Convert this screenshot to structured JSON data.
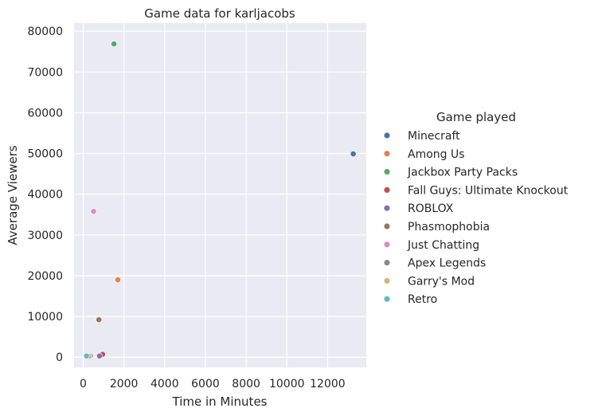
{
  "chart_data": {
    "type": "scatter",
    "title": "Game data for karljacobs",
    "xlabel": "Time in Minutes",
    "ylabel": "Average Viewers",
    "xlim": [
      -450,
      13900
    ],
    "ylim": [
      -2500,
      82000
    ],
    "xticks": [
      0,
      2000,
      4000,
      6000,
      8000,
      10000,
      12000
    ],
    "yticks": [
      0,
      10000,
      20000,
      30000,
      40000,
      50000,
      60000,
      70000,
      80000
    ],
    "grid": true,
    "legend": {
      "title": "Game played",
      "placement": "right"
    },
    "series": [
      {
        "name": "Minecraft",
        "color": "#4c72b0",
        "points": [
          [
            13260,
            49900
          ]
        ]
      },
      {
        "name": "Among Us",
        "color": "#dd8452",
        "points": [
          [
            1700,
            19000
          ]
        ]
      },
      {
        "name": "Jackbox Party Packs",
        "color": "#55a868",
        "points": [
          [
            1510,
            76900
          ]
        ]
      },
      {
        "name": "Fall Guys: Ultimate Knockout",
        "color": "#c44e52",
        "points": [
          [
            950,
            700
          ]
        ]
      },
      {
        "name": "ROBLOX",
        "color": "#8172b3",
        "points": [
          [
            800,
            300
          ]
        ]
      },
      {
        "name": "Phasmophobia",
        "color": "#937860",
        "points": [
          [
            770,
            9200
          ]
        ]
      },
      {
        "name": "Just Chatting",
        "color": "#da8bc3",
        "points": [
          [
            510,
            35800
          ]
        ]
      },
      {
        "name": "Apex Legends",
        "color": "#8c8c8c",
        "points": [
          [
            360,
            300
          ]
        ]
      },
      {
        "name": "Garry's Mod",
        "color": "#ccb974",
        "points": [
          [
            300,
            200
          ]
        ]
      },
      {
        "name": "Retro",
        "color": "#64b5cd",
        "points": [
          [
            160,
            300
          ]
        ]
      }
    ]
  }
}
